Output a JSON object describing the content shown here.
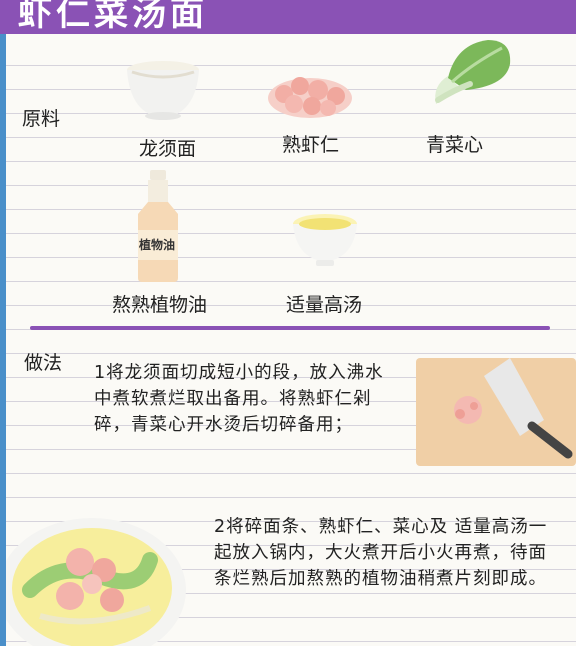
{
  "header": {
    "title": "虾仁菜汤面"
  },
  "ingredients": {
    "heading": "原料",
    "items": [
      {
        "name": "龙须面"
      },
      {
        "name": "熟虾仁"
      },
      {
        "name": "青菜心"
      },
      {
        "name": "熬熟植物油",
        "bottle_label": "植物油"
      },
      {
        "name": "适量高汤"
      }
    ]
  },
  "method": {
    "heading": "做法",
    "steps": [
      "1将龙须面切成短小的段，放入沸水中煮软煮烂取出备用。将熟虾仁剁碎，青菜心开水烫后切碎备用；",
      "2将碎面条、熟虾仁、菜心及 适量高汤一起放入锅内，大火煮开后小火再煮，待面条烂熟后加熬熟的植物油稍煮片刻即成。"
    ]
  },
  "colors": {
    "accent": "#8a52b5",
    "background": "#4a8fc9",
    "paper": "#fbfaf6"
  }
}
